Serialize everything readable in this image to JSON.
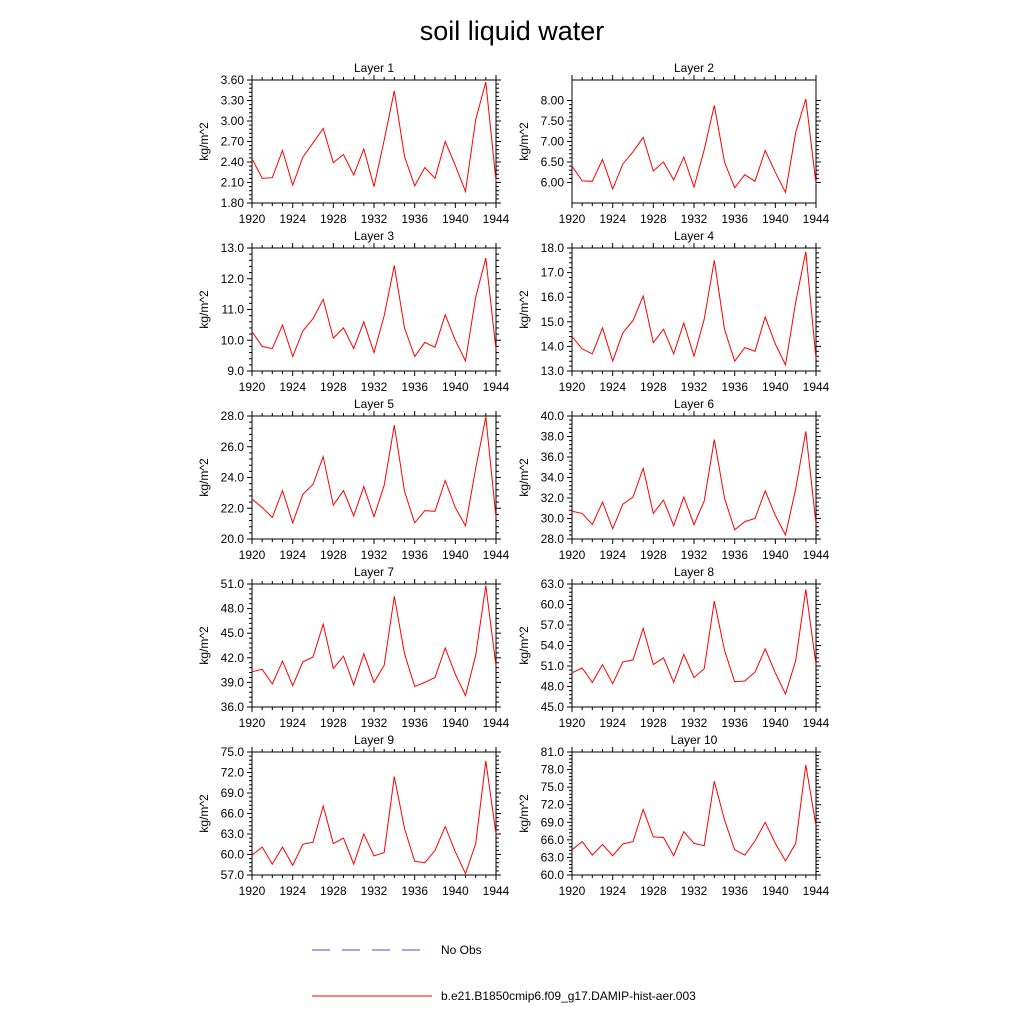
{
  "figure_title": "soil liquid water",
  "legend": [
    {
      "label": "No Obs",
      "color": "#3b4fd6",
      "style": "dashed"
    },
    {
      "label": "b.e21.B1850cmip6.f09_g17.DAMIP-hist-aer.003",
      "color": "#ff0000",
      "style": "solid"
    }
  ],
  "chart_data": [
    {
      "type": "line",
      "title": "Layer 1",
      "ylabel": "kg/m^2",
      "xlim": [
        1920,
        1944
      ],
      "ylim": [
        1.8,
        3.6
      ],
      "yticks": [
        "1.80",
        "2.10",
        "2.40",
        "2.70",
        "3.00",
        "3.30",
        "3.60"
      ],
      "xticks": [
        "1920",
        "1924",
        "1928",
        "1932",
        "1936",
        "1940",
        "1944"
      ],
      "x": [
        1920,
        1921,
        1922,
        1923,
        1924,
        1925,
        1926,
        1927,
        1928,
        1929,
        1930,
        1931,
        1932,
        1933,
        1934,
        1935,
        1936,
        1937,
        1938,
        1939,
        1940,
        1941,
        1942,
        1943,
        1944
      ],
      "series": [
        {
          "name": "b.e21.B1850cmip6.f09_g17.DAMIP-hist-aer.003",
          "values": [
            2.45,
            2.16,
            2.17,
            2.57,
            2.06,
            2.47,
            2.68,
            2.89,
            2.39,
            2.51,
            2.21,
            2.59,
            2.04,
            2.72,
            3.44,
            2.48,
            2.05,
            2.32,
            2.16,
            2.7,
            2.35,
            1.97,
            3.02,
            3.57,
            2.12
          ]
        }
      ]
    },
    {
      "type": "line",
      "title": "Layer 2",
      "ylabel": "kg/m^2",
      "xlim": [
        1920,
        1944
      ],
      "ylim": [
        5.5,
        8.5
      ],
      "yticks": [
        "6.00",
        "6.50",
        "7.00",
        "7.50",
        "8.00"
      ],
      "xticks": [
        "1920",
        "1924",
        "1928",
        "1932",
        "1936",
        "1940",
        "1944"
      ],
      "x": [
        1920,
        1921,
        1922,
        1923,
        1924,
        1925,
        1926,
        1927,
        1928,
        1929,
        1930,
        1931,
        1932,
        1933,
        1934,
        1935,
        1936,
        1937,
        1938,
        1939,
        1940,
        1941,
        1942,
        1943,
        1944
      ],
      "series": [
        {
          "name": "b.e21.B1850cmip6.f09_g17.DAMIP-hist-aer.003",
          "values": [
            6.4,
            6.04,
            6.03,
            6.56,
            5.84,
            6.45,
            6.75,
            7.1,
            6.28,
            6.5,
            6.06,
            6.62,
            5.89,
            6.8,
            7.88,
            6.5,
            5.87,
            6.19,
            6.03,
            6.78,
            6.25,
            5.76,
            7.22,
            8.04,
            5.97
          ]
        }
      ]
    },
    {
      "type": "line",
      "title": "Layer 3",
      "ylabel": "kg/m^2",
      "xlim": [
        1920,
        1944
      ],
      "ylim": [
        9.0,
        13.0
      ],
      "yticks": [
        "9.0",
        "10.0",
        "11.0",
        "12.0",
        "13.0"
      ],
      "xticks": [
        "1920",
        "1924",
        "1928",
        "1932",
        "1936",
        "1940",
        "1944"
      ],
      "x": [
        1920,
        1921,
        1922,
        1923,
        1924,
        1925,
        1926,
        1927,
        1928,
        1929,
        1930,
        1931,
        1932,
        1933,
        1934,
        1935,
        1936,
        1937,
        1938,
        1939,
        1940,
        1941,
        1942,
        1943,
        1944
      ],
      "series": [
        {
          "name": "b.e21.B1850cmip6.f09_g17.DAMIP-hist-aer.003",
          "values": [
            10.28,
            9.8,
            9.73,
            10.5,
            9.47,
            10.3,
            10.7,
            11.33,
            10.07,
            10.4,
            9.73,
            10.6,
            9.6,
            10.8,
            12.43,
            10.4,
            9.47,
            9.93,
            9.77,
            10.83,
            10.0,
            9.33,
            11.4,
            12.67,
            9.7
          ]
        }
      ]
    },
    {
      "type": "line",
      "title": "Layer 4",
      "ylabel": "kg/m^2",
      "xlim": [
        1920,
        1944
      ],
      "ylim": [
        13.0,
        18.0
      ],
      "yticks": [
        "13.0",
        "14.0",
        "15.0",
        "16.0",
        "17.0",
        "18.0"
      ],
      "xticks": [
        "1920",
        "1924",
        "1928",
        "1932",
        "1936",
        "1940",
        "1944"
      ],
      "x": [
        1920,
        1921,
        1922,
        1923,
        1924,
        1925,
        1926,
        1927,
        1928,
        1929,
        1930,
        1931,
        1932,
        1933,
        1934,
        1935,
        1936,
        1937,
        1938,
        1939,
        1940,
        1941,
        1942,
        1943,
        1944
      ],
      "series": [
        {
          "name": "b.e21.B1850cmip6.f09_g17.DAMIP-hist-aer.003",
          "values": [
            14.4,
            13.9,
            13.7,
            14.75,
            13.4,
            14.55,
            15.05,
            16.05,
            14.15,
            14.7,
            13.7,
            14.95,
            13.6,
            15.1,
            17.5,
            14.7,
            13.4,
            13.95,
            13.8,
            15.2,
            14.1,
            13.25,
            15.8,
            17.85,
            13.5
          ]
        }
      ]
    },
    {
      "type": "line",
      "title": "Layer 5",
      "ylabel": "kg/m^2",
      "xlim": [
        1920,
        1944
      ],
      "ylim": [
        20.0,
        28.0
      ],
      "yticks": [
        "20.0",
        "22.0",
        "24.0",
        "26.0",
        "28.0"
      ],
      "xticks": [
        "1920",
        "1924",
        "1928",
        "1932",
        "1936",
        "1940",
        "1944"
      ],
      "x": [
        1920,
        1921,
        1922,
        1923,
        1924,
        1925,
        1926,
        1927,
        1928,
        1929,
        1930,
        1931,
        1932,
        1933,
        1934,
        1935,
        1936,
        1937,
        1938,
        1939,
        1940,
        1941,
        1942,
        1943,
        1944
      ],
      "series": [
        {
          "name": "b.e21.B1850cmip6.f09_g17.DAMIP-hist-aer.003",
          "values": [
            22.6,
            22.05,
            21.4,
            23.15,
            21.05,
            22.9,
            23.55,
            25.35,
            22.2,
            23.15,
            21.5,
            23.4,
            21.45,
            23.5,
            27.4,
            23.1,
            21.05,
            21.85,
            21.8,
            23.8,
            22.05,
            20.85,
            24.6,
            27.95,
            21.4
          ]
        }
      ]
    },
    {
      "type": "line",
      "title": "Layer 6",
      "ylabel": "kg/m^2",
      "xlim": [
        1920,
        1944
      ],
      "ylim": [
        28.0,
        40.0
      ],
      "yticks": [
        "28.0",
        "30.0",
        "32.0",
        "34.0",
        "36.0",
        "38.0",
        "40.0"
      ],
      "xticks": [
        "1920",
        "1924",
        "1928",
        "1932",
        "1936",
        "1940",
        "1944"
      ],
      "x": [
        1920,
        1921,
        1922,
        1923,
        1924,
        1925,
        1926,
        1927,
        1928,
        1929,
        1930,
        1931,
        1932,
        1933,
        1934,
        1935,
        1936,
        1937,
        1938,
        1939,
        1940,
        1941,
        1942,
        1943,
        1944
      ],
      "series": [
        {
          "name": "b.e21.B1850cmip6.f09_g17.DAMIP-hist-aer.003",
          "values": [
            30.7,
            30.5,
            29.4,
            31.6,
            29.0,
            31.4,
            32.1,
            34.9,
            30.5,
            31.8,
            29.3,
            32.1,
            29.4,
            31.7,
            37.7,
            32.0,
            28.9,
            29.7,
            30.0,
            32.7,
            30.3,
            28.4,
            32.9,
            38.5,
            29.5
          ]
        }
      ]
    },
    {
      "type": "line",
      "title": "Layer 7",
      "ylabel": "kg/m^2",
      "xlim": [
        1920,
        1944
      ],
      "ylim": [
        36.0,
        51.0
      ],
      "yticks": [
        "36.0",
        "39.0",
        "42.0",
        "45.0",
        "48.0",
        "51.0"
      ],
      "xticks": [
        "1920",
        "1924",
        "1928",
        "1932",
        "1936",
        "1940",
        "1944"
      ],
      "x": [
        1920,
        1921,
        1922,
        1923,
        1924,
        1925,
        1926,
        1927,
        1928,
        1929,
        1930,
        1931,
        1932,
        1933,
        1934,
        1935,
        1936,
        1937,
        1938,
        1939,
        1940,
        1941,
        1942,
        1943,
        1944
      ],
      "series": [
        {
          "name": "b.e21.B1850cmip6.f09_g17.DAMIP-hist-aer.003",
          "values": [
            40.3,
            40.6,
            38.8,
            41.6,
            38.6,
            41.5,
            42.1,
            46.1,
            40.7,
            42.2,
            38.7,
            42.5,
            39.0,
            41.1,
            49.5,
            42.5,
            38.5,
            39.0,
            39.6,
            43.2,
            40.0,
            37.4,
            42.3,
            50.8,
            41.0
          ]
        }
      ]
    },
    {
      "type": "line",
      "title": "Layer 8",
      "ylabel": "kg/m^2",
      "xlim": [
        1920,
        1944
      ],
      "ylim": [
        45.0,
        63.0
      ],
      "yticks": [
        "45.0",
        "48.0",
        "51.0",
        "54.0",
        "57.0",
        "60.0",
        "63.0"
      ],
      "xticks": [
        "1920",
        "1924",
        "1928",
        "1932",
        "1936",
        "1940",
        "1944"
      ],
      "x": [
        1920,
        1921,
        1922,
        1923,
        1924,
        1925,
        1926,
        1927,
        1928,
        1929,
        1930,
        1931,
        1932,
        1933,
        1934,
        1935,
        1936,
        1937,
        1938,
        1939,
        1940,
        1941,
        1942,
        1943,
        1944
      ],
      "series": [
        {
          "name": "b.e21.B1850cmip6.f09_g17.DAMIP-hist-aer.003",
          "values": [
            50.0,
            50.7,
            48.6,
            51.2,
            48.4,
            51.6,
            51.9,
            56.5,
            51.2,
            52.2,
            48.6,
            52.7,
            49.3,
            50.6,
            60.5,
            53.3,
            48.7,
            48.8,
            50.1,
            53.5,
            50.0,
            46.9,
            51.8,
            62.2,
            51.2
          ]
        }
      ]
    },
    {
      "type": "line",
      "title": "Layer 9",
      "ylabel": "kg/m^2",
      "xlim": [
        1920,
        1944
      ],
      "ylim": [
        57.0,
        75.0
      ],
      "yticks": [
        "57.0",
        "60.0",
        "63.0",
        "66.0",
        "69.0",
        "72.0",
        "75.0"
      ],
      "xticks": [
        "1920",
        "1924",
        "1928",
        "1932",
        "1936",
        "1940",
        "1944"
      ],
      "x": [
        1920,
        1921,
        1922,
        1923,
        1924,
        1925,
        1926,
        1927,
        1928,
        1929,
        1930,
        1931,
        1932,
        1933,
        1934,
        1935,
        1936,
        1937,
        1938,
        1939,
        1940,
        1941,
        1942,
        1943,
        1944
      ],
      "series": [
        {
          "name": "b.e21.B1850cmip6.f09_g17.DAMIP-hist-aer.003",
          "values": [
            59.9,
            61.1,
            58.6,
            61.1,
            58.4,
            61.5,
            61.8,
            67.1,
            61.6,
            62.4,
            58.6,
            63.0,
            59.8,
            60.3,
            71.4,
            63.8,
            59.0,
            58.8,
            60.6,
            64.1,
            60.4,
            57.2,
            61.6,
            73.7,
            63.0
          ]
        }
      ]
    },
    {
      "type": "line",
      "title": "Layer 10",
      "ylabel": "kg/m^2",
      "xlim": [
        1920,
        1944
      ],
      "ylim": [
        60.0,
        81.0
      ],
      "yticks": [
        "60.0",
        "63.0",
        "66.0",
        "69.0",
        "72.0",
        "75.0",
        "78.0",
        "81.0"
      ],
      "xticks": [
        "1920",
        "1924",
        "1928",
        "1932",
        "1936",
        "1940",
        "1944"
      ],
      "x": [
        1920,
        1921,
        1922,
        1923,
        1924,
        1925,
        1926,
        1927,
        1928,
        1929,
        1930,
        1931,
        1932,
        1933,
        1934,
        1935,
        1936,
        1937,
        1938,
        1939,
        1940,
        1941,
        1942,
        1943,
        1944
      ],
      "series": [
        {
          "name": "b.e21.B1850cmip6.f09_g17.DAMIP-hist-aer.003",
          "values": [
            64.3,
            65.7,
            63.4,
            65.2,
            63.3,
            65.3,
            65.7,
            71.2,
            66.5,
            66.4,
            63.3,
            67.4,
            65.4,
            65.0,
            76.0,
            69.4,
            64.3,
            63.4,
            65.8,
            69.0,
            65.4,
            62.4,
            65.4,
            78.8,
            68.4
          ]
        }
      ]
    }
  ]
}
